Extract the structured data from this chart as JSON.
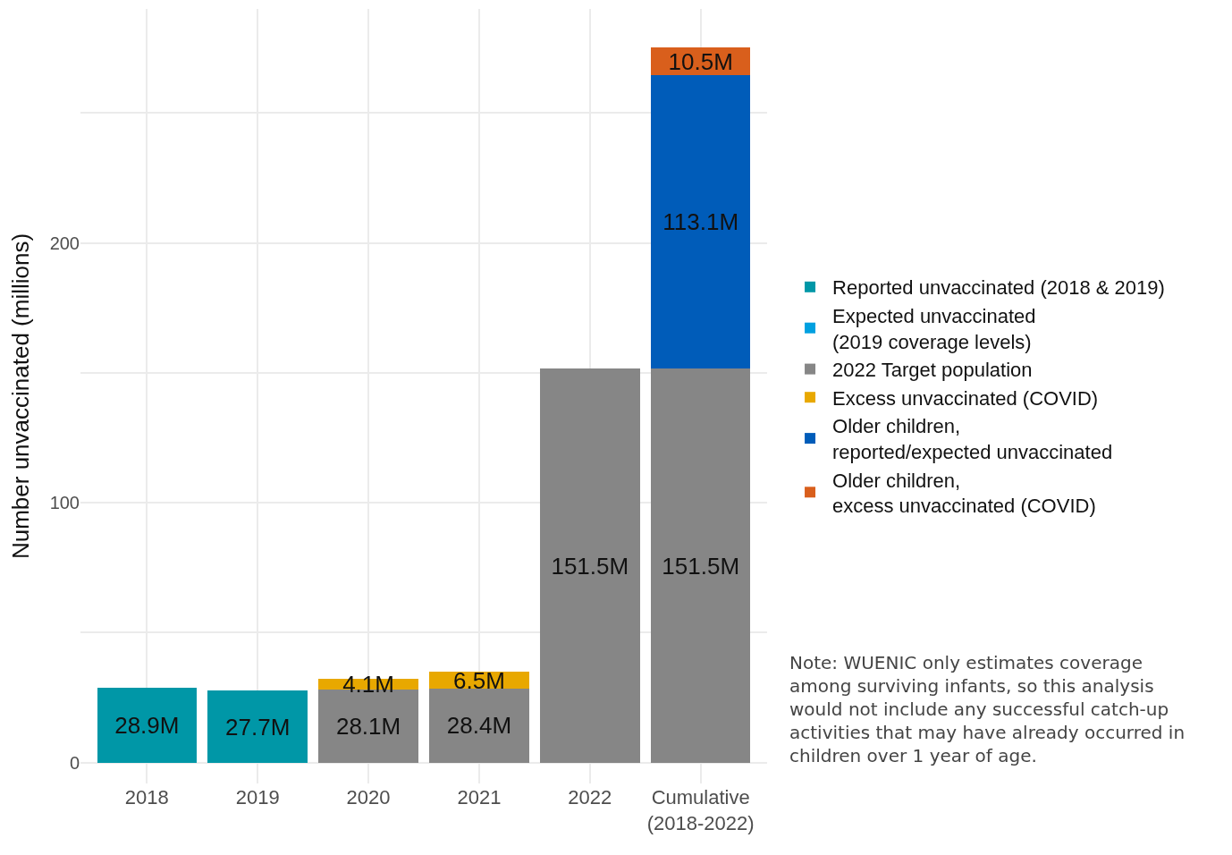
{
  "chart_data": {
    "type": "bar",
    "stacked": true,
    "ylabel": "Number unvaccinated (millions)",
    "categories": [
      "2018",
      "2019",
      "2020",
      "2021",
      "2022",
      "Cumulative\n(2018-2022)"
    ],
    "series": [
      {
        "name": "Reported unvaccinated (2018 & 2019)",
        "color": "#0097a7",
        "values": [
          28.9,
          27.7,
          null,
          null,
          null,
          null
        ],
        "value_labels": [
          "28.9M",
          "27.7M",
          null,
          null,
          null,
          null
        ]
      },
      {
        "name": "Expected unvaccinated\n(2019 coverage levels)",
        "color": "#00a0e0",
        "values": [
          null,
          null,
          null,
          null,
          null,
          null
        ]
      },
      {
        "name": "2022 Target population",
        "color": "#868686",
        "values": [
          null,
          null,
          28.1,
          28.4,
          151.5,
          151.5
        ],
        "value_labels": [
          null,
          null,
          "28.1M",
          "28.4M",
          "151.5M",
          "151.5M"
        ]
      },
      {
        "name": "Excess unvaccinated (COVID)",
        "color": "#e8a800",
        "values": [
          null,
          null,
          4.1,
          6.5,
          null,
          null
        ],
        "value_labels": [
          null,
          null,
          "4.1M",
          "6.5M",
          null,
          null
        ]
      },
      {
        "name": "Older children,\nreported/expected unvaccinated",
        "color": "#005cb9",
        "values": [
          null,
          null,
          null,
          null,
          null,
          113.1
        ],
        "value_labels": [
          null,
          null,
          null,
          null,
          null,
          "113.1M"
        ]
      },
      {
        "name": "Older children,\nexcess unvaccinated (COVID)",
        "color": "#d95f1c",
        "values": [
          null,
          null,
          null,
          null,
          null,
          10.5
        ],
        "value_labels": [
          null,
          null,
          null,
          null,
          null,
          "10.5M"
        ]
      }
    ],
    "ylim": [
      -8,
      290
    ],
    "yticks": [
      0,
      {
        "value": 50,
        "label": null
      },
      100,
      {
        "value": 150,
        "label": null
      },
      200,
      {
        "value": 250,
        "label": null
      }
    ],
    "grid": true,
    "legend": "right",
    "annotations": [
      "Note: WUENIC only estimates coverage\namong surviving infants, so this analysis\nwould not include any successful catch-up\nactivities that may have already occurred in\nchildren over 1 year of age."
    ]
  }
}
